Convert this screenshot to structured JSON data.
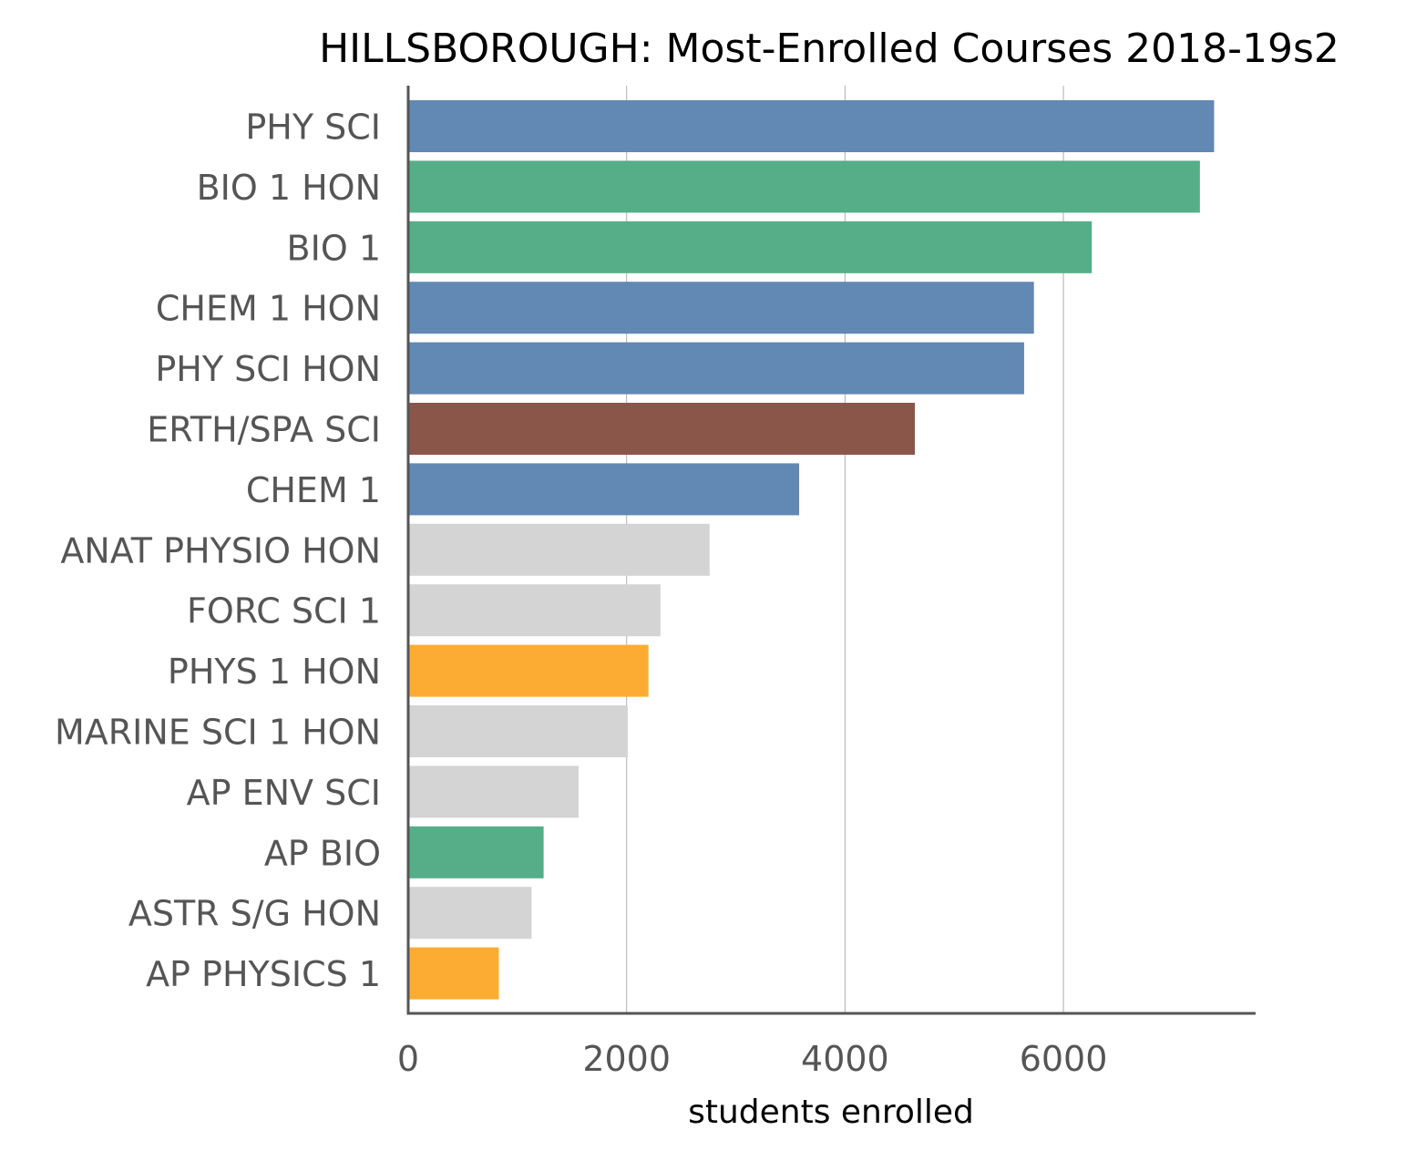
{
  "chart_data": {
    "type": "bar",
    "orientation": "horizontal",
    "title": "HILLSBOROUGH: Most-Enrolled Courses 2018-19s2",
    "xlabel": "students enrolled",
    "ylabel": "",
    "xlim": [
      0,
      7760
    ],
    "xticks": [
      0,
      2000,
      4000,
      6000
    ],
    "xtick_labels": [
      "0",
      "2000",
      "4000",
      "6000"
    ],
    "grid": "vertical",
    "categories": [
      "PHY SCI",
      "BIO 1 HON",
      "BIO 1",
      "CHEM 1 HON",
      "PHY SCI HON",
      "ERTH/SPA SCI",
      "CHEM 1",
      "ANAT PHYSIO HON",
      "FORC SCI 1",
      "PHYS 1 HON",
      "MARINE SCI 1 HON",
      "AP ENV SCI",
      "AP BIO",
      "ASTR S/G HON",
      "AP PHYSICS 1"
    ],
    "values": [
      7380,
      7250,
      6260,
      5730,
      5640,
      4640,
      3580,
      2760,
      2310,
      2200,
      2010,
      1560,
      1240,
      1130,
      830
    ],
    "colors": [
      "#6288b4",
      "#55ae88",
      "#55ae88",
      "#6288b4",
      "#6288b4",
      "#8b564a",
      "#6288b4",
      "#d4d4d4",
      "#d4d4d4",
      "#fdac33",
      "#d4d4d4",
      "#d4d4d4",
      "#55ae88",
      "#d4d4d4",
      "#fdac33"
    ],
    "grid_color": "#9a9a9a",
    "axis_color": "#555555"
  }
}
